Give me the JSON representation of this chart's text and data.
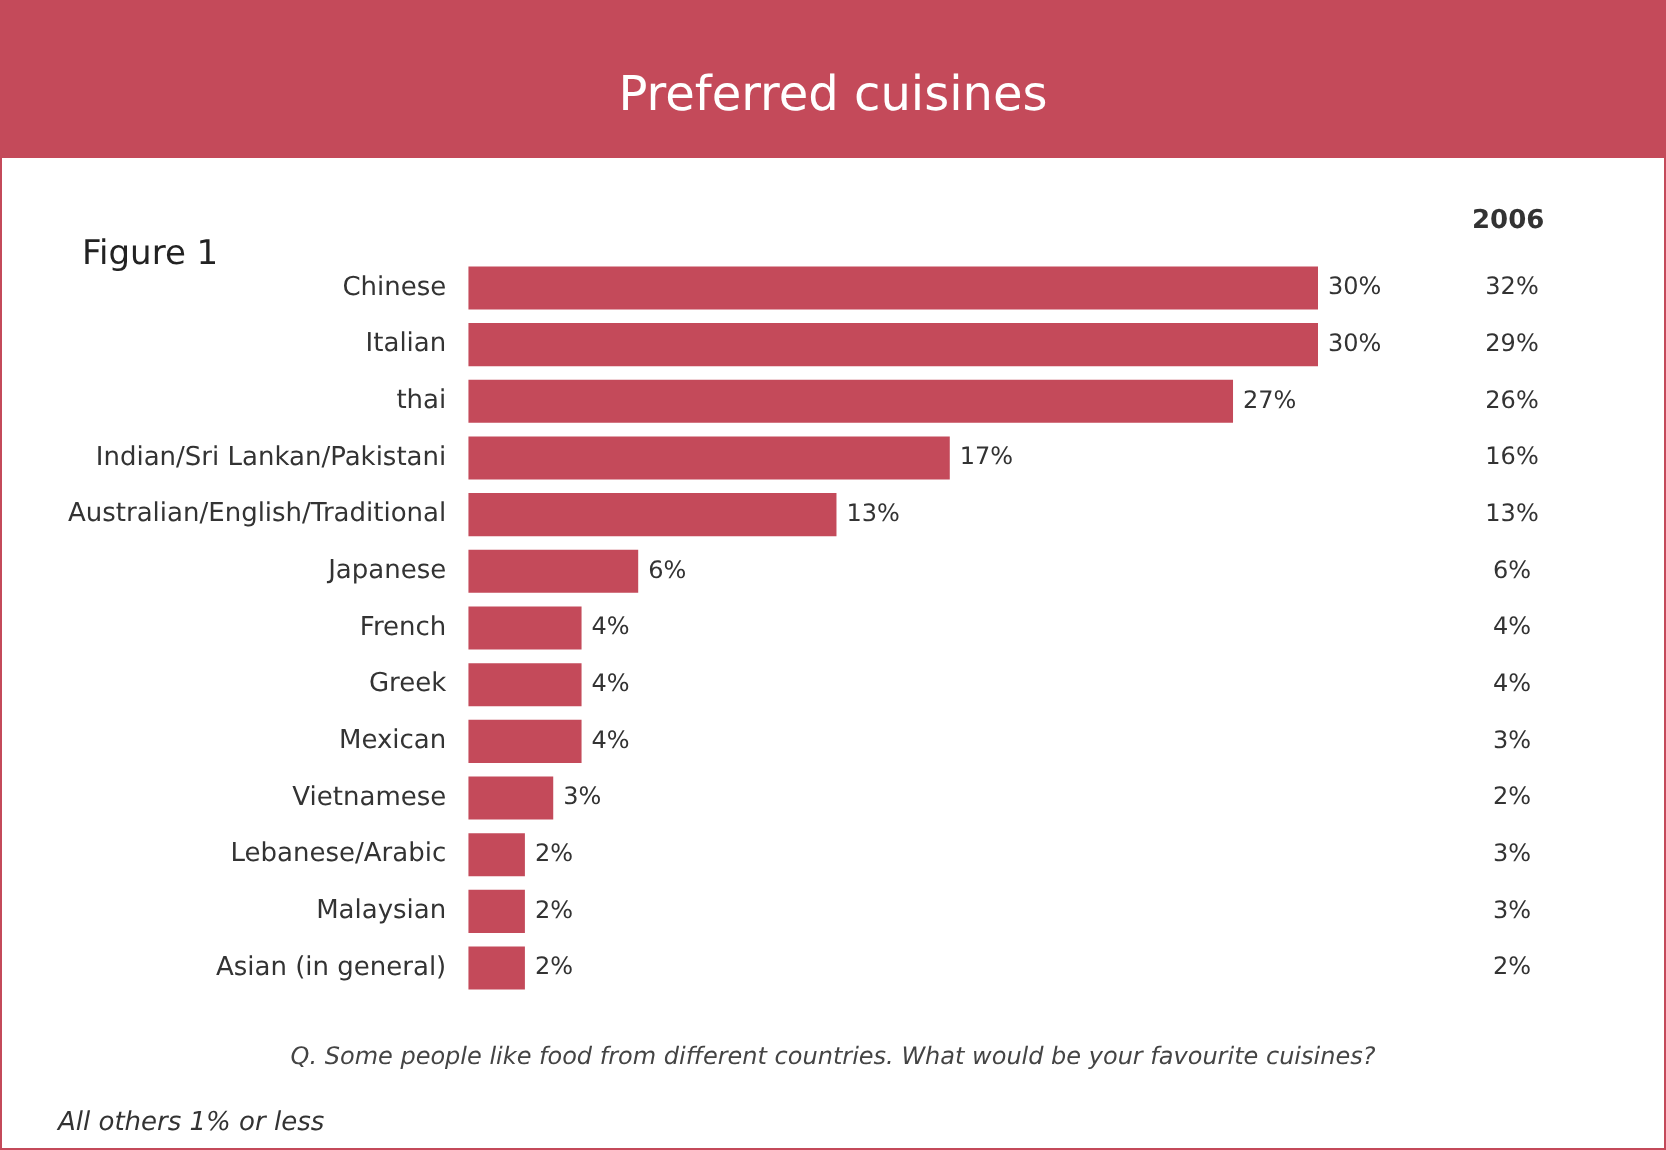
{
  "chart_data": {
    "type": "bar",
    "orientation": "horizontal",
    "title": "Preferred cuisines",
    "subtitle": "Figure 1",
    "categories": [
      "Chinese",
      "Italian",
      "thai",
      "Indian/Sri Lankan/Pakistani",
      "Australian/English/Traditional",
      "Japanese",
      "French",
      "Greek",
      "Mexican",
      "Vietnamese",
      "Lebanese/Arabic",
      "Malaysian",
      "Asian (in general)"
    ],
    "values": [
      30,
      30,
      27,
      17,
      13,
      6,
      4,
      4,
      4,
      3,
      2,
      2,
      2
    ],
    "value_labels": [
      "30%",
      "30%",
      "27%",
      "17%",
      "13%",
      "6%",
      "4%",
      "4%",
      "4%",
      "3%",
      "2%",
      "2%",
      "2%"
    ],
    "color": "#c44a5a",
    "xlim": [
      0,
      30
    ],
    "tick_labels": "y",
    "legend": false,
    "annotations": [
      "2006",
      "32%",
      "29%",
      "26%",
      "16%",
      "13%",
      "6%",
      "4%",
      "4%",
      "3%",
      "2%",
      "3%",
      "3%",
      "2%",
      "Q. Some people like food from different countries. What would be your favourite cuisines?",
      "All others 1% or less"
    ]
  }
}
